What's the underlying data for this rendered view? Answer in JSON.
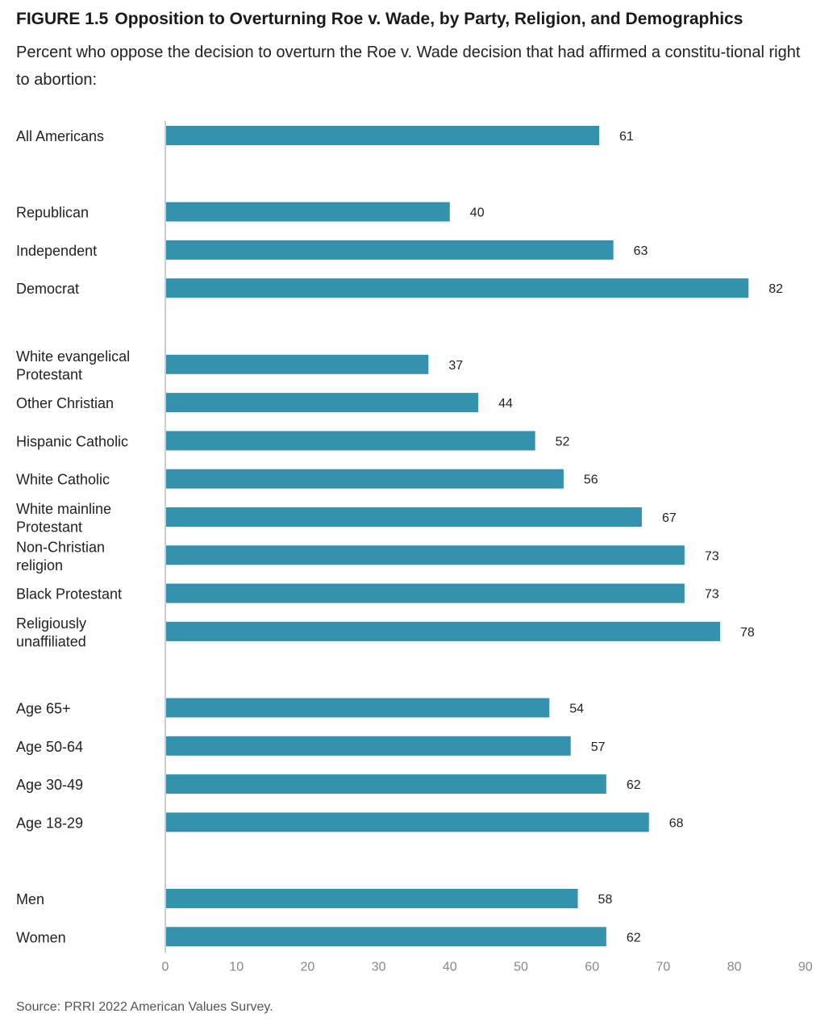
{
  "figure": {
    "label": "FIGURE 1.5",
    "title": "Opposition to Overturning Roe v. Wade, by Party, Religion, and Demographics",
    "subtitle": "Percent who oppose the decision to overturn the Roe v. Wade decision that had affirmed a constitu-tional right to abortion:",
    "source": "Source: PRRI 2022 American Values Survey."
  },
  "colors": {
    "bar": "#3592ae",
    "axis": "#cccccc"
  },
  "chart_data": {
    "type": "bar",
    "orientation": "horizontal",
    "title": "Opposition to Overturning Roe v. Wade, by Party, Religion, and Demographics",
    "xlim": [
      0,
      90
    ],
    "xticks": [
      0,
      10,
      20,
      30,
      40,
      50,
      60,
      70,
      80,
      90
    ],
    "grid": false,
    "groups": [
      {
        "items": [
          {
            "label": "All Americans",
            "value": 61
          }
        ]
      },
      {
        "items": [
          {
            "label": "Republican",
            "value": 40
          },
          {
            "label": "Independent",
            "value": 63
          },
          {
            "label": "Democrat",
            "value": 82
          }
        ]
      },
      {
        "items": [
          {
            "label": "White evangelical Protestant",
            "lines": [
              "White evangelical",
              "Protestant"
            ],
            "value": 37
          },
          {
            "label": "Other Christian",
            "value": 44
          },
          {
            "label": "Hispanic Catholic",
            "value": 52
          },
          {
            "label": "White Catholic",
            "value": 56
          },
          {
            "label": "White mainline Protestant",
            "lines": [
              "White mainline",
              "Protestant"
            ],
            "value": 67
          },
          {
            "label": "Non-Christian religion",
            "lines": [
              "Non-Christian",
              "religion"
            ],
            "value": 73
          },
          {
            "label": "Black Protestant",
            "value": 73
          },
          {
            "label": "Religiously unaffiliated",
            "lines": [
              "Religiously",
              "unaffiliated"
            ],
            "value": 78
          }
        ]
      },
      {
        "items": [
          {
            "label": "Age 65+",
            "value": 54
          },
          {
            "label": "Age 50-64",
            "value": 57
          },
          {
            "label": "Age 30-49",
            "value": 62
          },
          {
            "label": "Age 18-29",
            "value": 68
          }
        ]
      },
      {
        "items": [
          {
            "label": "Men",
            "value": 58
          },
          {
            "label": "Women",
            "value": 62
          }
        ]
      }
    ]
  }
}
